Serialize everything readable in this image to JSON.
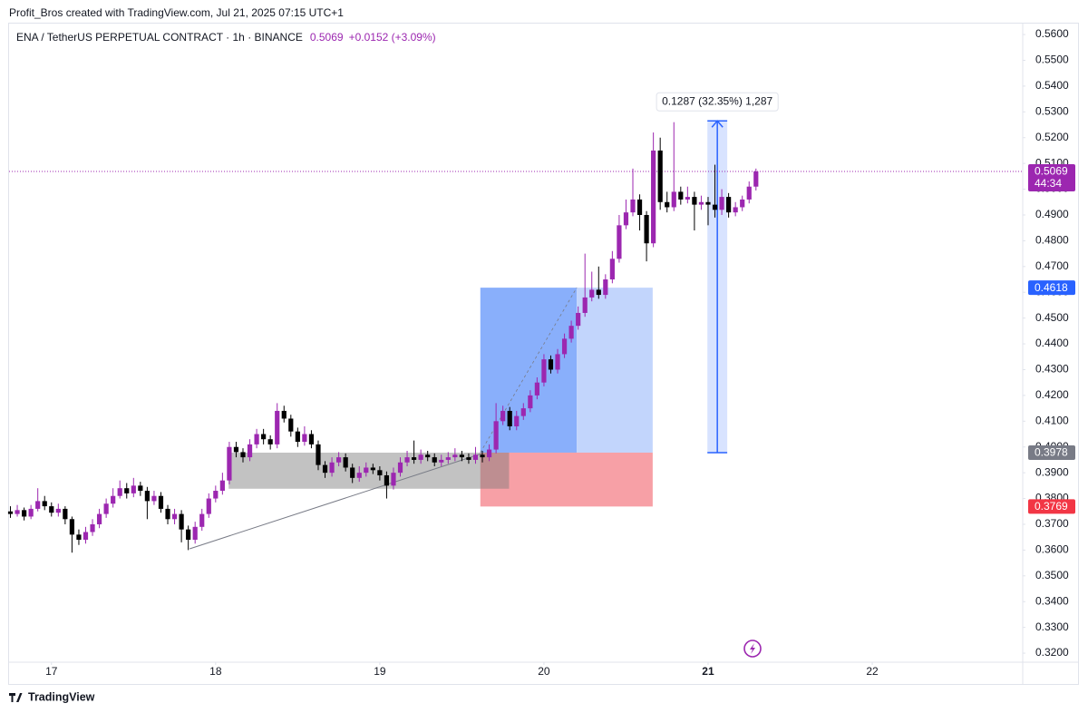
{
  "header": "Profit_Bros created with TradingView.com, Jul 21, 2025 07:15 UTC+1",
  "footer": "TradingView",
  "chart_data": {
    "type": "candlestick",
    "title": "ENA / TetherUS PERPETUAL CONTRACT · 1h · BINANCE",
    "change": "+0.0152 (+3.09%)",
    "countdown": "44:34",
    "x": [
      -6,
      -5,
      -4,
      -3,
      -2,
      -1,
      0,
      1,
      2,
      3,
      4,
      5,
      6,
      7,
      8,
      9,
      10,
      11,
      12,
      13,
      14,
      15,
      16,
      17,
      18,
      19,
      20,
      21,
      22,
      23,
      24,
      25,
      26,
      27,
      28,
      29,
      30,
      31,
      32,
      33,
      34,
      35,
      36,
      37,
      38,
      39,
      40,
      41,
      42,
      43,
      44,
      45,
      46,
      47,
      48,
      49,
      50,
      51,
      52,
      53,
      54,
      55,
      56,
      57,
      58,
      59,
      60,
      61,
      62,
      63,
      64,
      65,
      66,
      67,
      68,
      69,
      70,
      71,
      72,
      73,
      74,
      75,
      76,
      77,
      78,
      79,
      80,
      81,
      82,
      83,
      84,
      85,
      86,
      87,
      88,
      89,
      90,
      91,
      92,
      93,
      94,
      95,
      96,
      97,
      98,
      99,
      100,
      101,
      102,
      103
    ],
    "open": [
      0.375,
      0.374,
      0.3755,
      0.373,
      0.376,
      0.379,
      0.377,
      0.3745,
      0.376,
      0.372,
      0.366,
      0.364,
      0.367,
      0.37,
      0.374,
      0.378,
      0.381,
      0.384,
      0.382,
      0.385,
      0.383,
      0.379,
      0.381,
      0.376,
      0.372,
      0.374,
      0.368,
      0.364,
      0.369,
      0.374,
      0.38,
      0.383,
      0.387,
      0.4,
      0.398,
      0.396,
      0.401,
      0.405,
      0.403,
      0.401,
      0.414,
      0.411,
      0.406,
      0.402,
      0.405,
      0.401,
      0.393,
      0.39,
      0.394,
      0.396,
      0.392,
      0.388,
      0.39,
      0.392,
      0.391,
      0.389,
      0.385,
      0.39,
      0.394,
      0.396,
      0.395,
      0.397,
      0.396,
      0.394,
      0.395,
      0.396,
      0.397,
      0.396,
      0.395,
      0.397,
      0.396,
      0.399,
      0.41,
      0.414,
      0.408,
      0.412,
      0.415,
      0.42,
      0.425,
      0.434,
      0.43,
      0.436,
      0.442,
      0.447,
      0.452,
      0.458,
      0.461,
      0.459,
      0.465,
      0.473,
      0.486,
      0.491,
      0.496,
      0.49,
      0.479,
      0.515,
      0.495,
      0.493,
      0.499,
      0.496,
      0.497,
      0.494,
      0.495,
      0.494,
      0.492,
      0.497,
      0.491,
      0.493,
      0.496,
      0.501
    ],
    "high": [
      0.377,
      0.3775,
      0.3765,
      0.3775,
      0.384,
      0.381,
      0.3785,
      0.378,
      0.377,
      0.373,
      0.368,
      0.369,
      0.372,
      0.376,
      0.38,
      0.384,
      0.387,
      0.386,
      0.388,
      0.3865,
      0.3845,
      0.383,
      0.3825,
      0.3775,
      0.376,
      0.3755,
      0.3695,
      0.371,
      0.376,
      0.382,
      0.385,
      0.39,
      0.402,
      0.402,
      0.3995,
      0.403,
      0.407,
      0.407,
      0.4045,
      0.417,
      0.416,
      0.4125,
      0.4075,
      0.408,
      0.4065,
      0.4025,
      0.3945,
      0.396,
      0.398,
      0.3975,
      0.3935,
      0.3925,
      0.394,
      0.3935,
      0.3925,
      0.3905,
      0.392,
      0.396,
      0.3985,
      0.4025,
      0.399,
      0.3985,
      0.3975,
      0.397,
      0.398,
      0.3995,
      0.3985,
      0.3975,
      0.4,
      0.3985,
      0.401,
      0.417,
      0.416,
      0.4155,
      0.414,
      0.417,
      0.422,
      0.427,
      0.436,
      0.4355,
      0.438,
      0.444,
      0.449,
      0.4545,
      0.475,
      0.468,
      0.47,
      0.467,
      0.476,
      0.49,
      0.496,
      0.508,
      0.498,
      0.4915,
      0.522,
      0.52,
      0.499,
      0.526,
      0.501,
      0.501,
      0.499,
      0.4975,
      0.497,
      0.5095,
      0.5,
      0.4985,
      0.495,
      0.4975,
      0.503,
      0.508
    ],
    "low": [
      0.3725,
      0.373,
      0.3715,
      0.372,
      0.375,
      0.3755,
      0.373,
      0.373,
      0.37,
      0.359,
      0.362,
      0.3625,
      0.3655,
      0.3685,
      0.3725,
      0.3765,
      0.38,
      0.38,
      0.3805,
      0.381,
      0.372,
      0.3775,
      0.3745,
      0.37,
      0.37,
      0.363,
      0.36,
      0.3625,
      0.3675,
      0.3725,
      0.3785,
      0.3815,
      0.3855,
      0.396,
      0.394,
      0.3945,
      0.3995,
      0.401,
      0.399,
      0.3995,
      0.4095,
      0.404,
      0.4,
      0.4005,
      0.3995,
      0.391,
      0.388,
      0.3885,
      0.3925,
      0.3905,
      0.386,
      0.3865,
      0.3885,
      0.3895,
      0.387,
      0.38,
      0.3835,
      0.3885,
      0.3925,
      0.3935,
      0.3935,
      0.3945,
      0.3925,
      0.3925,
      0.3935,
      0.3945,
      0.3945,
      0.3935,
      0.3935,
      0.394,
      0.3945,
      0.3975,
      0.4085,
      0.4065,
      0.4065,
      0.4105,
      0.4135,
      0.4185,
      0.4235,
      0.4285,
      0.4285,
      0.4345,
      0.4405,
      0.4455,
      0.4505,
      0.4565,
      0.4575,
      0.4575,
      0.4635,
      0.4715,
      0.4845,
      0.4895,
      0.484,
      0.472,
      0.4775,
      0.492,
      0.491,
      0.4915,
      0.494,
      0.4945,
      0.484,
      0.492,
      0.486,
      0.489,
      0.49,
      0.489,
      0.4895,
      0.4915,
      0.4945,
      0.4995
    ],
    "close": [
      0.374,
      0.3755,
      0.373,
      0.376,
      0.379,
      0.377,
      0.3745,
      0.376,
      0.372,
      0.366,
      0.364,
      0.367,
      0.37,
      0.374,
      0.378,
      0.381,
      0.384,
      0.382,
      0.385,
      0.383,
      0.379,
      0.381,
      0.376,
      0.372,
      0.374,
      0.368,
      0.364,
      0.369,
      0.374,
      0.38,
      0.383,
      0.387,
      0.4,
      0.398,
      0.396,
      0.401,
      0.405,
      0.403,
      0.401,
      0.414,
      0.411,
      0.406,
      0.402,
      0.405,
      0.401,
      0.393,
      0.39,
      0.394,
      0.396,
      0.392,
      0.388,
      0.39,
      0.392,
      0.391,
      0.389,
      0.385,
      0.39,
      0.394,
      0.396,
      0.395,
      0.397,
      0.396,
      0.394,
      0.395,
      0.396,
      0.397,
      0.396,
      0.395,
      0.397,
      0.396,
      0.399,
      0.41,
      0.414,
      0.408,
      0.412,
      0.415,
      0.42,
      0.425,
      0.434,
      0.43,
      0.436,
      0.442,
      0.447,
      0.452,
      0.458,
      0.461,
      0.459,
      0.465,
      0.473,
      0.486,
      0.491,
      0.496,
      0.49,
      0.479,
      0.515,
      0.495,
      0.493,
      0.499,
      0.496,
      0.497,
      0.494,
      0.495,
      0.494,
      0.492,
      0.497,
      0.491,
      0.493,
      0.496,
      0.501,
      0.5069
    ],
    "up_color": "#9c27b0",
    "down_color": "#000000",
    "grid": false,
    "xlim": [
      -6.2,
      142
    ],
    "xticks": [
      {
        "value": 0,
        "label": "17"
      },
      {
        "value": 24,
        "label": "18"
      },
      {
        "value": 48,
        "label": "19"
      },
      {
        "value": 72,
        "label": "20"
      },
      {
        "value": 96,
        "label": "21"
      },
      {
        "value": 120,
        "label": "22"
      }
    ],
    "ylim": [
      0.3165,
      0.5646
    ],
    "yticks": [
      {
        "value": 0.32,
        "label": "0.3200"
      },
      {
        "value": 0.33,
        "label": "0.3300"
      },
      {
        "value": 0.34,
        "label": "0.3400"
      },
      {
        "value": 0.35,
        "label": "0.3500"
      },
      {
        "value": 0.36,
        "label": "0.3600"
      },
      {
        "value": 0.37,
        "label": "0.3700"
      },
      {
        "value": 0.38,
        "label": "0.3800"
      },
      {
        "value": 0.39,
        "label": "0.3900"
      },
      {
        "value": 0.4,
        "label": "0.4000"
      },
      {
        "value": 0.41,
        "label": "0.4100"
      },
      {
        "value": 0.42,
        "label": "0.4200"
      },
      {
        "value": 0.43,
        "label": "0.4300"
      },
      {
        "value": 0.44,
        "label": "0.4400"
      },
      {
        "value": 0.45,
        "label": "0.4500"
      },
      {
        "value": 0.46,
        "label": "0.4600"
      },
      {
        "value": 0.47,
        "label": "0.4700"
      },
      {
        "value": 0.48,
        "label": "0.4800"
      },
      {
        "value": 0.49,
        "label": "0.4900"
      },
      {
        "value": 0.5,
        "label": "0.5000"
      },
      {
        "value": 0.51,
        "label": "0.5100"
      },
      {
        "value": 0.52,
        "label": "0.5200"
      },
      {
        "value": 0.53,
        "label": "0.5300"
      },
      {
        "value": 0.54,
        "label": "0.5400"
      },
      {
        "value": 0.55,
        "label": "0.5500"
      },
      {
        "value": 0.56,
        "label": "0.5600"
      }
    ],
    "position": {
      "entry": 0.3978,
      "target": 0.4618,
      "stop": 0.3769
    },
    "range_box": {
      "low": 0.3838,
      "high": 0.3978
    },
    "trendline": {
      "from": 0.3605,
      "to": 0.3975
    },
    "measure": {
      "low": 0.3978,
      "high": 0.5265,
      "label": "0.1287 (32.35%) 1,287"
    }
  }
}
